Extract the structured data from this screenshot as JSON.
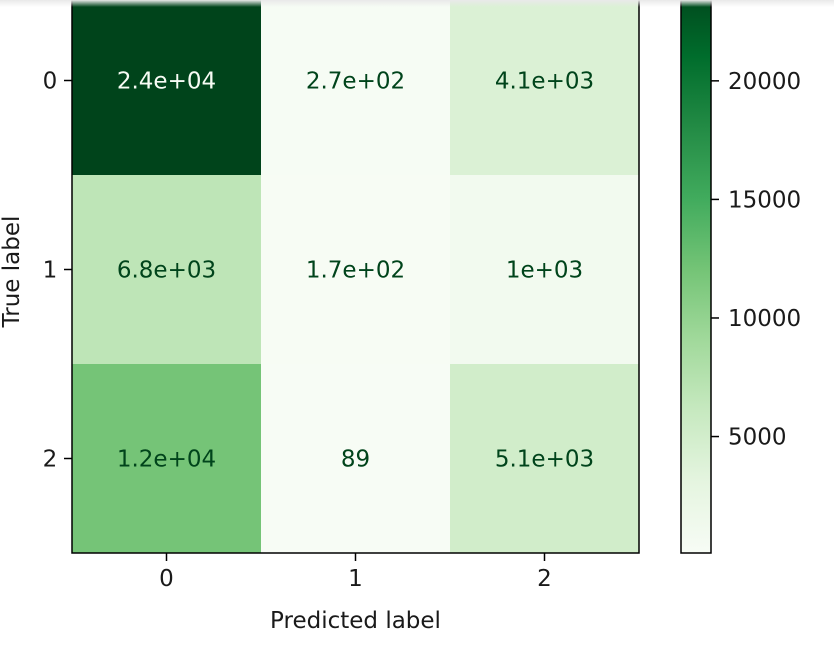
{
  "chart_data": {
    "type": "heatmap",
    "title": "",
    "xlabel": "Predicted label",
    "ylabel": "True label",
    "x_categories": [
      "0",
      "1",
      "2"
    ],
    "y_categories": [
      "0",
      "1",
      "2"
    ],
    "values": [
      [
        24000,
        270,
        4100
      ],
      [
        6800,
        170,
        1000
      ],
      [
        12000,
        89,
        5100
      ]
    ],
    "cell_labels": [
      [
        "2.4e+04",
        "2.7e+02",
        "4.1e+03"
      ],
      [
        "6.8e+03",
        "1.7e+02",
        "1e+03"
      ],
      [
        "1.2e+04",
        "89",
        "5.1e+03"
      ]
    ],
    "colormap": "Greens",
    "colorbar": {
      "range": [
        89,
        24000
      ],
      "ticks": [
        5000,
        10000,
        15000,
        20000
      ],
      "tick_labels": [
        "5000",
        "10000",
        "15000",
        "20000"
      ]
    },
    "grid": false,
    "colors": {
      "low": "#f7fcf5",
      "high": "#00441b",
      "text_dark": "#00441b",
      "text_light": "#f7fcf5"
    }
  }
}
